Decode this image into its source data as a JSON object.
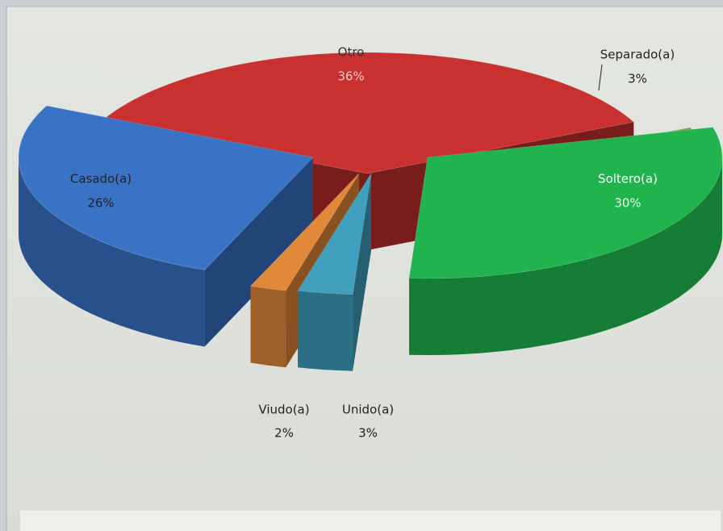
{
  "chart_data": {
    "type": "pie",
    "categories": [
      "Otro",
      "Separado(a)",
      "Soltero(a)",
      "Unido(a)",
      "Viudo(a)",
      "Casado(a)"
    ],
    "values": [
      36,
      3,
      30,
      3,
      2,
      26
    ],
    "value_labels": [
      "36%",
      "3%",
      "30%",
      "3%",
      "2%",
      "26%"
    ],
    "colors": [
      "#c8312f",
      "#7f9c3c",
      "#20b34e",
      "#3f9fbd",
      "#e2883a",
      "#3a73c6"
    ]
  }
}
